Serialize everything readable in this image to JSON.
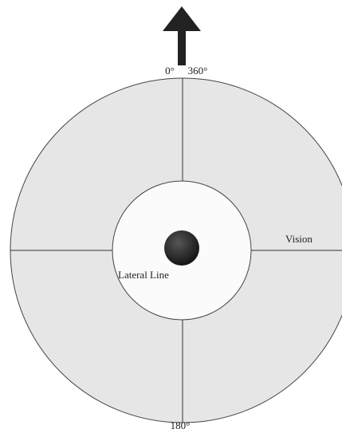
{
  "labels": {
    "north_left": "0°",
    "north_right": "360°",
    "vision": "Vision",
    "lateral_line": "Lateral Line",
    "south": "180°"
  }
}
